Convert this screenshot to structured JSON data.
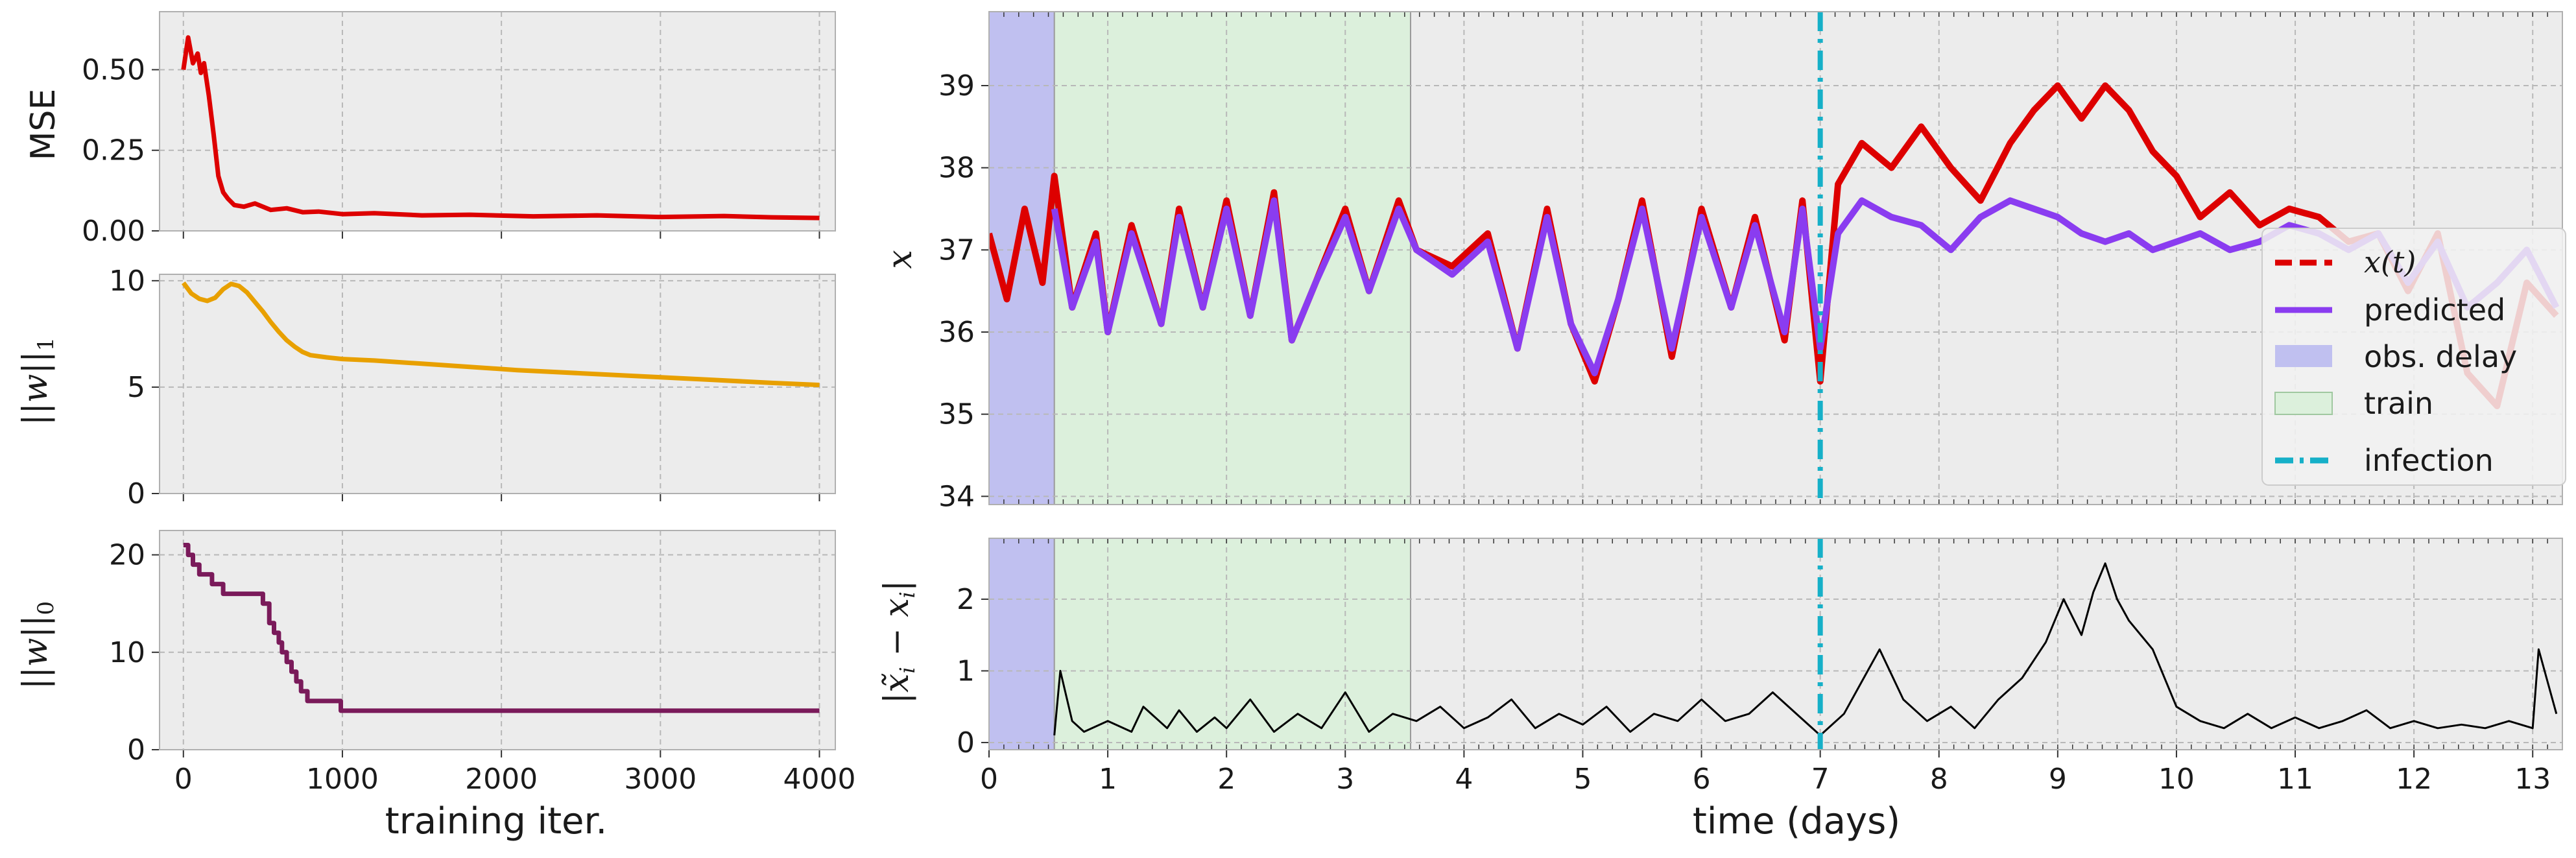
{
  "chart_data": [
    {
      "id": "mse",
      "type": "line",
      "title": "",
      "xlabel": "",
      "ylabel": "MSE",
      "xlim": [
        -150,
        4100
      ],
      "ylim": [
        0,
        0.68
      ],
      "xticks": [
        0,
        1000,
        2000,
        3000,
        4000
      ],
      "yticks": [
        0.0,
        0.25,
        0.5
      ],
      "ytick_labels": [
        "0.00",
        "0.25",
        "0.50"
      ],
      "grid": true,
      "color": "#dd0000",
      "x": [
        0,
        30,
        60,
        90,
        110,
        130,
        160,
        190,
        220,
        250,
        280,
        320,
        380,
        450,
        550,
        650,
        750,
        850,
        1000,
        1200,
        1500,
        1800,
        2200,
        2600,
        3000,
        3400,
        3700,
        4000
      ],
      "values": [
        0.5,
        0.6,
        0.52,
        0.55,
        0.49,
        0.52,
        0.42,
        0.3,
        0.17,
        0.12,
        0.1,
        0.08,
        0.075,
        0.085,
        0.065,
        0.07,
        0.058,
        0.06,
        0.052,
        0.055,
        0.048,
        0.05,
        0.045,
        0.048,
        0.043,
        0.046,
        0.042,
        0.04
      ]
    },
    {
      "id": "l1",
      "type": "line",
      "title": "",
      "xlabel": "",
      "ylabel": "||w||_1",
      "xlim": [
        -150,
        4100
      ],
      "ylim": [
        0,
        10.3
      ],
      "xticks": [
        0,
        1000,
        2000,
        3000,
        4000
      ],
      "yticks": [
        0,
        5,
        10
      ],
      "ytick_labels": [
        "0",
        "5",
        "10"
      ],
      "grid": true,
      "color": "#e8a000",
      "x": [
        0,
        50,
        100,
        150,
        200,
        250,
        300,
        350,
        400,
        450,
        500,
        550,
        600,
        650,
        700,
        750,
        800,
        900,
        1000,
        1200,
        1500,
        1800,
        2100,
        2500,
        2900,
        3300,
        3700,
        4000
      ],
      "values": [
        9.9,
        9.4,
        9.15,
        9.05,
        9.2,
        9.6,
        9.85,
        9.75,
        9.45,
        9.0,
        8.55,
        8.05,
        7.6,
        7.2,
        6.9,
        6.65,
        6.5,
        6.4,
        6.32,
        6.25,
        6.1,
        5.95,
        5.8,
        5.65,
        5.5,
        5.35,
        5.2,
        5.1
      ]
    },
    {
      "id": "l0",
      "type": "line",
      "title": "",
      "xlabel": "training iter.",
      "ylabel": "||w||_0",
      "xlim": [
        -150,
        4100
      ],
      "ylim": [
        0,
        22.5
      ],
      "xticks": [
        0,
        1000,
        2000,
        3000,
        4000
      ],
      "yticks": [
        0,
        10,
        20
      ],
      "ytick_labels": [
        "0",
        "10",
        "20"
      ],
      "grid": true,
      "color": "#7a1a5a",
      "x": [
        0,
        30,
        30,
        60,
        60,
        100,
        100,
        180,
        180,
        250,
        250,
        330,
        330,
        500,
        500,
        540,
        540,
        570,
        570,
        600,
        600,
        620,
        620,
        650,
        650,
        680,
        680,
        710,
        710,
        740,
        740,
        780,
        780,
        810,
        810,
        860,
        860,
        990,
        990,
        1030,
        1030,
        4000
      ],
      "values": [
        21,
        21,
        20,
        20,
        19,
        19,
        18,
        18,
        17,
        17,
        16,
        16,
        16,
        16,
        15,
        15,
        13,
        13,
        12,
        12,
        11,
        11,
        10,
        10,
        9,
        9,
        8,
        8,
        7,
        7,
        6,
        6,
        5,
        5,
        5,
        5,
        5,
        5,
        4,
        4,
        4,
        4
      ]
    },
    {
      "id": "x",
      "type": "line",
      "title": "",
      "xlabel": "",
      "ylabel": "x",
      "xlim": [
        0,
        13.25
      ],
      "ylim": [
        33.9,
        39.9
      ],
      "yticks": [
        34,
        35,
        36,
        37,
        38,
        39
      ],
      "grid": true,
      "shaded_regions": [
        {
          "label": "obs. delay",
          "from": 0,
          "to": 0.55,
          "color": "#c0c0f0"
        },
        {
          "label": "train",
          "from": 0.55,
          "to": 3.55,
          "color": "#dcf0dc"
        }
      ],
      "vertical_line": {
        "label": "infection",
        "x": 7.0,
        "color": "#16b0c8"
      },
      "legend": {
        "position": "right",
        "entries": [
          {
            "label": "x(t)",
            "style": "dashed",
            "color": "#dd0000"
          },
          {
            "label": "predicted",
            "style": "solid",
            "color": "#8a3cf0"
          },
          {
            "label": "obs. delay",
            "style": "patch",
            "color": "#c0c0f0"
          },
          {
            "label": "train",
            "style": "patch",
            "color": "#dcf0dc"
          },
          {
            "label": "infection",
            "style": "dashdot",
            "color": "#16b0c8"
          }
        ]
      },
      "series": [
        {
          "name": "x(t)",
          "color": "#dd0000",
          "x": [
            0.0,
            0.15,
            0.3,
            0.45,
            0.55,
            0.7,
            0.9,
            1.0,
            1.2,
            1.45,
            1.6,
            1.8,
            2.0,
            2.2,
            2.4,
            2.55,
            2.75,
            3.0,
            3.2,
            3.45,
            3.6,
            3.9,
            4.2,
            4.45,
            4.7,
            4.9,
            5.1,
            5.3,
            5.5,
            5.75,
            6.0,
            6.25,
            6.45,
            6.7,
            6.85,
            7.0,
            7.15,
            7.35,
            7.6,
            7.85,
            8.1,
            8.35,
            8.6,
            8.8,
            9.0,
            9.2,
            9.4,
            9.6,
            9.8,
            10.0,
            10.2,
            10.45,
            10.7,
            10.95,
            11.2,
            11.45,
            11.7,
            11.95,
            12.2,
            12.45,
            12.7,
            12.95,
            13.2
          ],
          "values": [
            37.2,
            36.4,
            37.5,
            36.6,
            37.9,
            36.3,
            37.2,
            36.0,
            37.3,
            36.1,
            37.5,
            36.3,
            37.6,
            36.2,
            37.7,
            35.9,
            36.6,
            37.5,
            36.5,
            37.6,
            37.0,
            36.8,
            37.2,
            35.8,
            37.5,
            36.1,
            35.4,
            36.4,
            37.6,
            35.7,
            37.5,
            36.3,
            37.4,
            35.9,
            37.6,
            35.4,
            37.8,
            38.3,
            38.0,
            38.5,
            38.0,
            37.6,
            38.3,
            38.7,
            39.0,
            38.6,
            39.0,
            38.7,
            38.2,
            37.9,
            37.4,
            37.7,
            37.3,
            37.5,
            37.4,
            37.1,
            37.2,
            36.5,
            37.2,
            35.5,
            35.1,
            36.6,
            36.2
          ]
        },
        {
          "name": "predicted",
          "color": "#8a3cf0",
          "x": [
            0.55,
            0.7,
            0.9,
            1.0,
            1.2,
            1.45,
            1.6,
            1.8,
            2.0,
            2.2,
            2.4,
            2.55,
            2.75,
            3.0,
            3.2,
            3.45,
            3.6,
            3.9,
            4.2,
            4.45,
            4.7,
            4.9,
            5.1,
            5.3,
            5.5,
            5.75,
            6.0,
            6.25,
            6.45,
            6.7,
            6.85,
            7.0,
            7.15,
            7.35,
            7.6,
            7.85,
            8.1,
            8.35,
            8.6,
            8.8,
            9.0,
            9.2,
            9.4,
            9.6,
            9.8,
            10.0,
            10.2,
            10.45,
            10.7,
            10.95,
            11.2,
            11.45,
            11.7,
            11.95,
            12.2,
            12.45,
            12.7,
            12.95,
            13.2
          ],
          "values": [
            37.5,
            36.3,
            37.1,
            36.0,
            37.2,
            36.1,
            37.4,
            36.3,
            37.5,
            36.2,
            37.6,
            35.9,
            36.6,
            37.4,
            36.5,
            37.5,
            37.0,
            36.7,
            37.1,
            35.8,
            37.4,
            36.1,
            35.5,
            36.4,
            37.5,
            35.8,
            37.4,
            36.3,
            37.3,
            36.0,
            37.5,
            35.8,
            37.2,
            37.6,
            37.4,
            37.3,
            37.0,
            37.4,
            37.6,
            37.5,
            37.4,
            37.2,
            37.1,
            37.2,
            37.0,
            37.1,
            37.2,
            37.0,
            37.1,
            37.3,
            37.2,
            37.0,
            37.2,
            36.6,
            37.1,
            36.3,
            36.6,
            37.0,
            36.3
          ]
        }
      ]
    },
    {
      "id": "err",
      "type": "line",
      "title": "",
      "xlabel": "time (days)",
      "ylabel": "|x̃_i - x_i|",
      "xlim": [
        0,
        13.25
      ],
      "ylim": [
        -0.1,
        2.85
      ],
      "xticks": [
        0,
        1,
        2,
        3,
        4,
        5,
        6,
        7,
        8,
        9,
        10,
        11,
        12,
        13
      ],
      "yticks": [
        0,
        1,
        2
      ],
      "grid": true,
      "color": "#000000",
      "shaded_regions": [
        {
          "label": "obs. delay",
          "from": 0,
          "to": 0.55,
          "color": "#c0c0f0"
        },
        {
          "label": "train",
          "from": 0.55,
          "to": 3.55,
          "color": "#dcf0dc"
        }
      ],
      "vertical_line": {
        "label": "infection",
        "x": 7.0,
        "color": "#16b0c8"
      },
      "x": [
        0.55,
        0.6,
        0.7,
        0.8,
        1.0,
        1.2,
        1.3,
        1.5,
        1.6,
        1.75,
        1.9,
        2.0,
        2.2,
        2.4,
        2.6,
        2.8,
        3.0,
        3.2,
        3.4,
        3.6,
        3.8,
        4.0,
        4.2,
        4.4,
        4.6,
        4.8,
        5.0,
        5.2,
        5.4,
        5.6,
        5.8,
        6.0,
        6.2,
        6.4,
        6.6,
        6.8,
        7.0,
        7.2,
        7.4,
        7.5,
        7.7,
        7.9,
        8.1,
        8.3,
        8.5,
        8.7,
        8.9,
        9.05,
        9.2,
        9.3,
        9.4,
        9.5,
        9.6,
        9.8,
        10.0,
        10.2,
        10.4,
        10.6,
        10.8,
        11.0,
        11.2,
        11.4,
        11.6,
        11.8,
        12.0,
        12.2,
        12.4,
        12.6,
        12.8,
        13.0,
        13.05,
        13.2
      ],
      "values": [
        0.1,
        1.0,
        0.3,
        0.15,
        0.3,
        0.15,
        0.5,
        0.2,
        0.45,
        0.15,
        0.35,
        0.2,
        0.6,
        0.15,
        0.4,
        0.2,
        0.7,
        0.15,
        0.4,
        0.3,
        0.5,
        0.2,
        0.35,
        0.6,
        0.2,
        0.4,
        0.25,
        0.5,
        0.15,
        0.4,
        0.3,
        0.6,
        0.3,
        0.4,
        0.7,
        0.4,
        0.1,
        0.4,
        1.0,
        1.3,
        0.6,
        0.3,
        0.5,
        0.2,
        0.6,
        0.9,
        1.4,
        2.0,
        1.5,
        2.1,
        2.5,
        2.0,
        1.7,
        1.3,
        0.5,
        0.3,
        0.2,
        0.4,
        0.2,
        0.35,
        0.2,
        0.3,
        0.45,
        0.2,
        0.3,
        0.2,
        0.25,
        0.2,
        0.3,
        0.2,
        1.3,
        0.4
      ]
    }
  ]
}
